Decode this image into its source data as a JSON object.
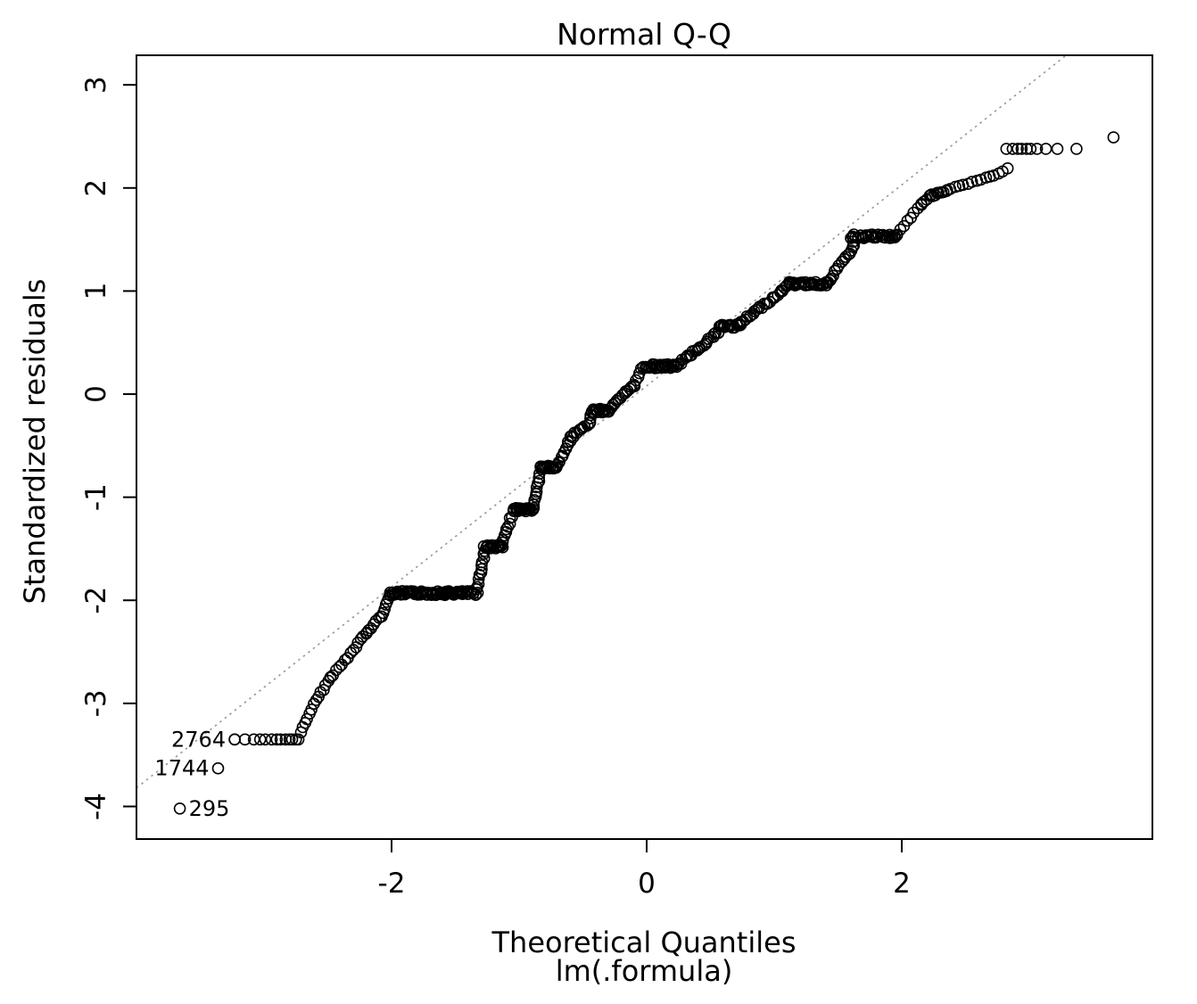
{
  "chart_data": {
    "type": "scatter",
    "title": "Normal Q-Q",
    "xlabel": "Theoretical Quantiles",
    "xlabel2": "lm(.formula)",
    "ylabel": "Standardized residuals",
    "xlim": [
      -4.0,
      3.965
    ],
    "ylim": [
      -4.316,
      3.287
    ],
    "x_ticks": [
      -2,
      0,
      2
    ],
    "y_ticks": [
      -4,
      -3,
      -2,
      -1,
      0,
      1,
      2,
      3
    ],
    "grid": false,
    "legend": "none",
    "point_style": {
      "radius": 6,
      "stroke_width": 1.6,
      "color": "#000000",
      "fill": "none"
    },
    "ref_line": {
      "slope": 0.975,
      "intercept": 0.08,
      "style": "dotted",
      "color": "#999999"
    },
    "labeled_points": [
      {
        "label": "2764",
        "x": -3.23,
        "y": -3.35,
        "side": "left"
      },
      {
        "label": "1744",
        "x": -3.36,
        "y": -3.63,
        "side": "left"
      },
      {
        "label": "295",
        "x": -3.66,
        "y": -4.02,
        "side": "right"
      }
    ],
    "curve_points": [
      [
        -3.23,
        -3.35
      ],
      [
        -3.15,
        -3.35
      ],
      [
        -3.08,
        -3.35
      ],
      [
        -3.03,
        -3.35
      ],
      [
        -2.99,
        -3.35
      ],
      [
        -2.94,
        -3.35
      ],
      [
        -2.9,
        -3.35
      ],
      [
        -2.87,
        -3.35
      ],
      [
        -2.83,
        -3.35
      ],
      [
        -2.8,
        -3.35
      ],
      [
        -2.78,
        -3.35
      ],
      [
        -2.75,
        -3.35
      ],
      [
        -2.73,
        -3.35
      ],
      [
        2.38,
        1.99
      ],
      [
        2.42,
        2.01
      ],
      [
        2.45,
        2.02
      ],
      [
        2.48,
        2.03
      ],
      [
        2.52,
        2.04
      ],
      [
        2.55,
        2.06
      ],
      [
        2.59,
        2.07
      ],
      [
        2.62,
        2.08
      ],
      [
        2.66,
        2.1
      ],
      [
        2.69,
        2.11
      ],
      [
        2.72,
        2.12
      ],
      [
        2.76,
        2.14
      ],
      [
        2.79,
        2.16
      ],
      [
        2.83,
        2.19
      ],
      [
        2.82,
        2.38
      ],
      [
        2.87,
        2.38
      ],
      [
        2.91,
        2.38
      ],
      [
        2.94,
        2.38
      ],
      [
        2.98,
        2.38
      ],
      [
        3.01,
        2.38
      ],
      [
        3.06,
        2.38
      ],
      [
        3.13,
        2.38
      ],
      [
        3.22,
        2.38
      ],
      [
        3.37,
        2.38
      ],
      [
        3.66,
        2.49
      ]
    ],
    "curve_segments": [
      [
        -2.71,
        -3.28,
        -2.61,
        -3.01,
        7,
        1
      ],
      [
        -2.61,
        -3.01,
        -2.48,
        -2.75,
        8,
        1
      ],
      [
        -2.48,
        -2.75,
        -2.34,
        -2.55,
        7,
        1.5
      ],
      [
        -2.34,
        -2.55,
        -2.2,
        -2.32,
        8,
        1.5
      ],
      [
        -2.2,
        -2.32,
        -2.08,
        -2.15,
        7,
        1.5
      ],
      [
        -2.08,
        -2.15,
        -2.01,
        -1.95,
        7,
        1
      ],
      [
        -2.01,
        -1.93,
        -1.33,
        -1.93,
        85,
        2.2
      ],
      [
        -1.33,
        -1.9,
        -1.27,
        -1.52,
        12,
        1.5
      ],
      [
        -1.27,
        -1.48,
        -1.13,
        -1.48,
        20,
        2
      ],
      [
        -1.13,
        -1.45,
        -1.06,
        -1.18,
        9,
        1.5
      ],
      [
        -1.05,
        -1.12,
        -0.89,
        -1.12,
        20,
        2
      ],
      [
        -0.89,
        -1.1,
        -0.83,
        -0.74,
        12,
        1.5
      ],
      [
        -0.83,
        -0.71,
        -0.7,
        -0.71,
        18,
        2
      ],
      [
        -0.7,
        -0.7,
        -0.59,
        -0.42,
        11,
        1.5
      ],
      [
        -0.59,
        -0.42,
        -0.45,
        -0.28,
        10,
        1.8
      ],
      [
        -0.45,
        -0.28,
        -0.43,
        -0.17,
        4,
        1
      ],
      [
        -0.43,
        -0.16,
        -0.29,
        -0.16,
        18,
        2
      ],
      [
        -0.29,
        -0.15,
        -0.1,
        0.09,
        14,
        1.8
      ],
      [
        -0.1,
        0.09,
        -0.04,
        0.24,
        5,
        1.2
      ],
      [
        -0.03,
        0.27,
        0.24,
        0.27,
        32,
        2.2
      ],
      [
        0.24,
        0.28,
        0.56,
        0.6,
        24,
        2
      ],
      [
        0.56,
        0.6,
        0.57,
        0.65,
        2,
        1
      ],
      [
        0.57,
        0.66,
        0.73,
        0.66,
        18,
        2
      ],
      [
        0.73,
        0.68,
        1.1,
        1.04,
        26,
        2
      ],
      [
        1.1,
        1.07,
        1.42,
        1.07,
        32,
        2
      ],
      [
        1.42,
        1.08,
        1.62,
        1.43,
        14,
        1.8
      ],
      [
        1.62,
        1.44,
        1.61,
        1.52,
        3,
        1
      ],
      [
        1.61,
        1.53,
        1.96,
        1.53,
        34,
        2.2
      ],
      [
        1.96,
        1.55,
        2.15,
        1.84,
        8,
        1.2
      ],
      [
        2.15,
        1.84,
        2.22,
        1.92,
        4,
        1
      ],
      [
        2.22,
        1.92,
        2.36,
        1.97,
        11,
        1.5
      ]
    ]
  }
}
